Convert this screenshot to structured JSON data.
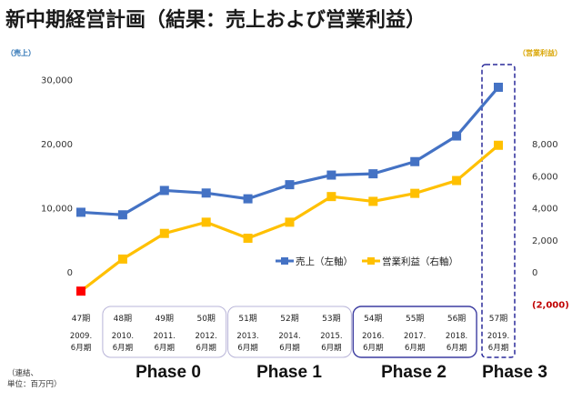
{
  "title": "新中期経営計画（結果：売上および営業利益）",
  "units": {
    "left": "（売上）",
    "right": "（営業利益）"
  },
  "footer": {
    "line1": "（連結、",
    "line2": "単位：百万円）"
  },
  "colors": {
    "sales": "#4472c4",
    "profit": "#ffc000",
    "negative_marker": "#ff0000",
    "negative_label": "#c00000",
    "phase3_box": "#2a2a9a"
  },
  "chart_data": {
    "type": "line",
    "categories": [
      "47期",
      "48期",
      "49期",
      "50期",
      "51期",
      "52期",
      "53期",
      "54期",
      "55期",
      "56期",
      "57期"
    ],
    "period_labels": [
      [
        "2009.",
        "6月期"
      ],
      [
        "2010.",
        "6月期"
      ],
      [
        "2011.",
        "6月期"
      ],
      [
        "2012.",
        "6月期"
      ],
      [
        "2013.",
        "6月期"
      ],
      [
        "2014.",
        "6月期"
      ],
      [
        "2015.",
        "6月期"
      ],
      [
        "2016.",
        "6月期"
      ],
      [
        "2017.",
        "6月期"
      ],
      [
        "2018.",
        "6月期"
      ],
      [
        "2019.",
        "6月期"
      ]
    ],
    "series": [
      {
        "name": "売上（左軸）",
        "axis": "left",
        "values": [
          9300,
          8900,
          12700,
          12300,
          11400,
          13600,
          15100,
          15300,
          17200,
          21200,
          28800
        ]
      },
      {
        "name": "営業利益（右軸）",
        "axis": "right",
        "values": [
          -1200,
          800,
          2400,
          3100,
          2100,
          3100,
          4700,
          4400,
          4900,
          5700,
          7900
        ]
      }
    ],
    "left_axis": {
      "ylim": [
        0,
        30000
      ],
      "ticks": [
        "30,000",
        "20,000",
        "10,000",
        "0"
      ]
    },
    "right_axis": {
      "ylim": [
        -2000,
        8000
      ],
      "ticks": [
        "8,000",
        "6,000",
        "4,000",
        "2,000",
        "0",
        "(2,000)"
      ]
    },
    "legend_position": "right-middle",
    "phases": [
      {
        "label": "Phase 0",
        "start": 1,
        "end": 3
      },
      {
        "label": "Phase 1",
        "start": 4,
        "end": 6
      },
      {
        "label": "Phase 2",
        "start": 7,
        "end": 9
      },
      {
        "label": "Phase 3",
        "start": 10,
        "end": 10
      }
    ]
  }
}
